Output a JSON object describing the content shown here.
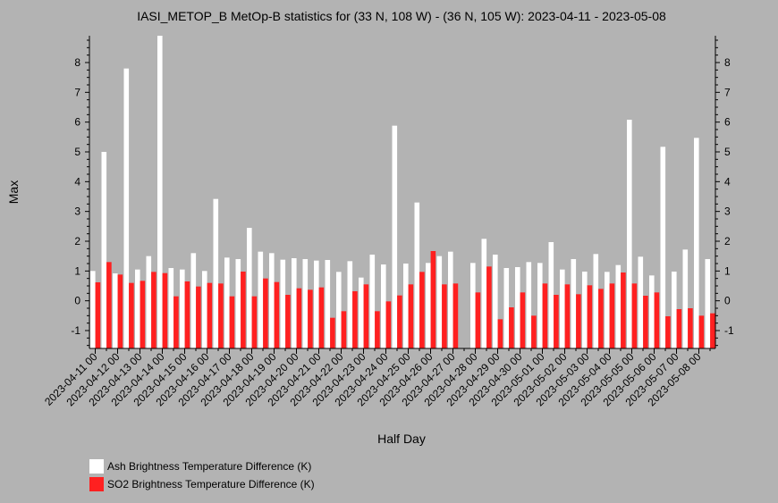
{
  "chart_data": {
    "type": "bar",
    "title": "IASI_METOP_B MetOp-B statistics for (33 N, 108 W) - (36 N, 105 W): 2023-04-11 - 2023-05-08",
    "xlabel": "Half Day",
    "ylabel": "Max",
    "ylim": [
      -1.6,
      8.9
    ],
    "yticks": [
      -1,
      0,
      1,
      2,
      3,
      4,
      5,
      6,
      7,
      8
    ],
    "categories": [
      "2023-04-11 00",
      "2023-04-11 12",
      "2023-04-12 00",
      "2023-04-12 12",
      "2023-04-13 00",
      "2023-04-13 12",
      "2023-04-14 00",
      "2023-04-14 12",
      "2023-04-15 00",
      "2023-04-15 12",
      "2023-04-16 00",
      "2023-04-16 12",
      "2023-04-17 00",
      "2023-04-17 12",
      "2023-04-18 00",
      "2023-04-18 12",
      "2023-04-19 00",
      "2023-04-19 12",
      "2023-04-20 00",
      "2023-04-20 12",
      "2023-04-21 00",
      "2023-04-21 12",
      "2023-04-22 00",
      "2023-04-22 12",
      "2023-04-23 00",
      "2023-04-23 12",
      "2023-04-24 00",
      "2023-04-24 12",
      "2023-04-25 00",
      "2023-04-25 12",
      "2023-04-26 00",
      "2023-04-26 12",
      "2023-04-27 00",
      "2023-04-27 12",
      "2023-04-28 00",
      "2023-04-28 12",
      "2023-04-29 00",
      "2023-04-29 12",
      "2023-04-30 00",
      "2023-04-30 12",
      "2023-05-01 00",
      "2023-05-01 12",
      "2023-05-02 00",
      "2023-05-02 12",
      "2023-05-03 00",
      "2023-05-03 12",
      "2023-05-04 00",
      "2023-05-04 12",
      "2023-05-05 00",
      "2023-05-05 12",
      "2023-05-06 00",
      "2023-05-06 12",
      "2023-05-07 00",
      "2023-05-07 12",
      "2023-05-08 00",
      "2023-05-08 12"
    ],
    "tick_labels": [
      "2023-04-11 00",
      "2023-04-12 00",
      "2023-04-13 00",
      "2023-04-14 00",
      "2023-04-15 00",
      "2023-04-16 00",
      "2023-04-17 00",
      "2023-04-18 00",
      "2023-04-19 00",
      "2023-04-20 00",
      "2023-04-21 00",
      "2023-04-22 00",
      "2023-04-23 00",
      "2023-04-24 00",
      "2023-04-25 00",
      "2023-04-26 00",
      "2023-04-27 00",
      "2023-04-28 00",
      "2023-04-29 00",
      "2023-04-30 00",
      "2023-05-01 00",
      "2023-05-02 00",
      "2023-05-03 00",
      "2023-05-04 00",
      "2023-05-05 00",
      "2023-05-06 00",
      "2023-05-07 00",
      "2023-05-08 00"
    ],
    "series": [
      {
        "name": "Ash Brightness Temperature Difference (K)",
        "color": "#ffffff",
        "values": [
          1.0,
          5.0,
          0.92,
          7.8,
          1.05,
          1.5,
          8.9,
          1.1,
          1.05,
          1.6,
          1.0,
          3.42,
          1.45,
          1.4,
          2.45,
          1.65,
          1.6,
          1.38,
          1.43,
          1.4,
          1.35,
          1.37,
          0.97,
          1.33,
          0.78,
          1.55,
          1.22,
          5.88,
          1.25,
          3.3,
          1.27,
          1.5,
          1.65,
          null,
          1.27,
          2.08,
          1.55,
          1.1,
          1.13,
          1.3,
          1.27,
          1.97,
          1.05,
          1.4,
          0.98,
          1.57,
          0.97,
          1.2,
          6.08,
          1.48,
          0.85,
          5.17,
          0.98,
          1.72,
          5.47,
          1.4
        ]
      },
      {
        "name": "SO2 Brightness Temperature Difference (K)",
        "color": "#ff2020",
        "values": [
          0.62,
          1.3,
          0.88,
          0.6,
          0.67,
          0.97,
          0.93,
          0.15,
          0.65,
          0.48,
          0.6,
          0.58,
          0.15,
          0.98,
          0.15,
          0.75,
          0.63,
          0.2,
          0.42,
          0.37,
          0.45,
          -0.57,
          -0.35,
          0.32,
          0.55,
          -0.35,
          -0.02,
          0.18,
          0.55,
          0.97,
          1.67,
          0.55,
          0.58,
          null,
          0.28,
          1.15,
          -0.62,
          -0.22,
          0.28,
          -0.5,
          0.58,
          0.2,
          0.55,
          0.22,
          0.52,
          0.4,
          0.58,
          0.95,
          0.58,
          0.17,
          0.28,
          -0.52,
          -0.28,
          -0.25,
          -0.5,
          -0.42
        ]
      }
    ],
    "legend_position": "bottom-left",
    "grid": false
  }
}
